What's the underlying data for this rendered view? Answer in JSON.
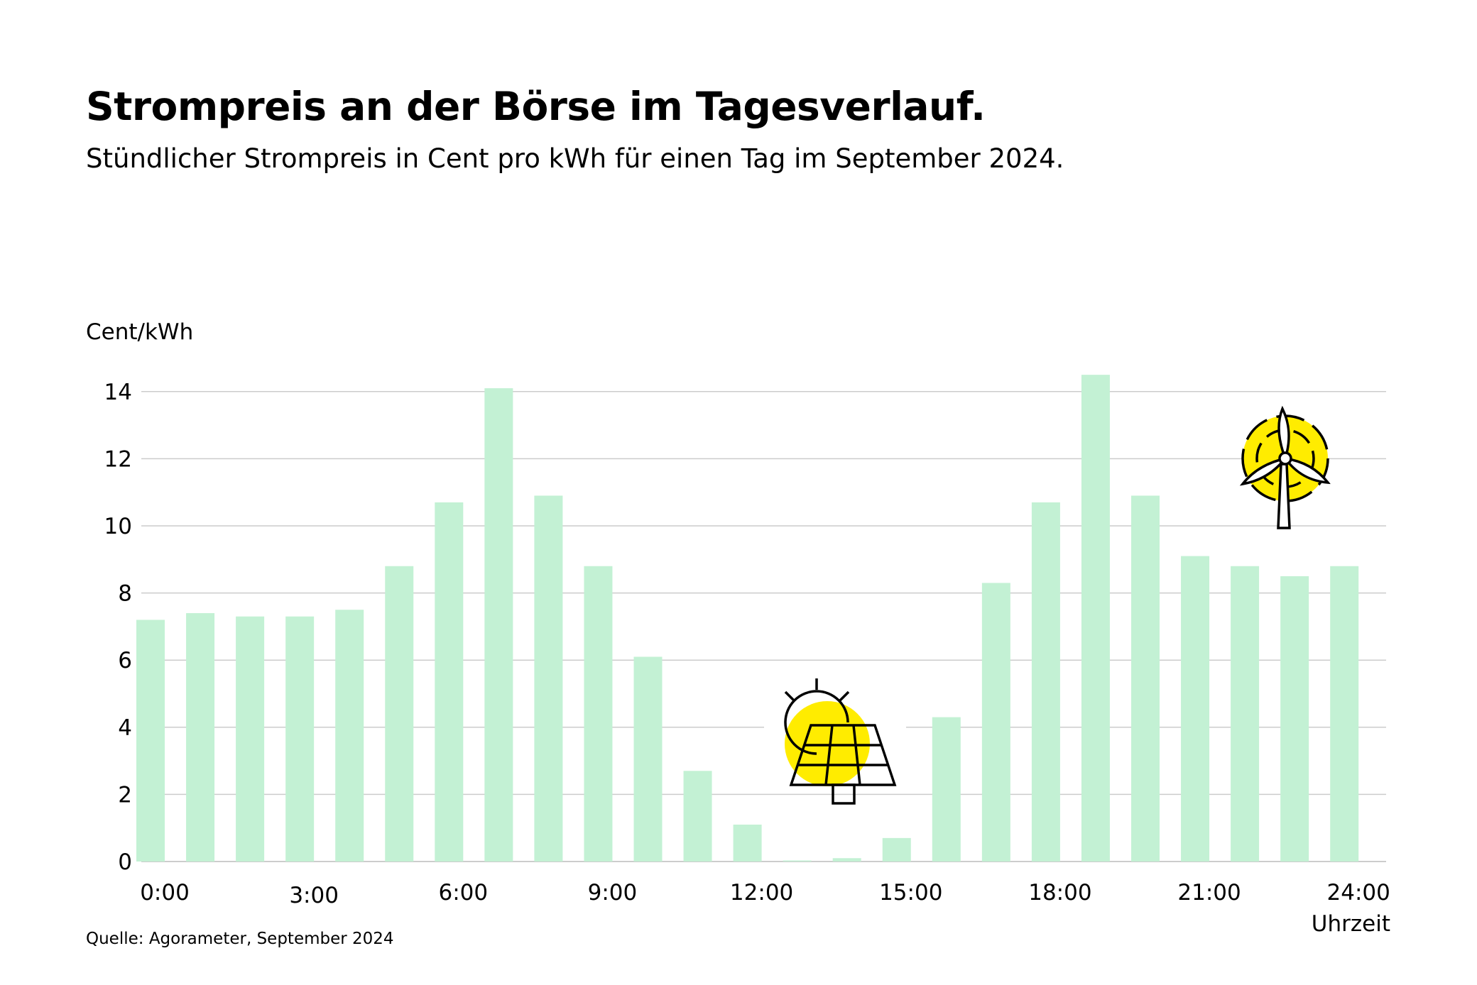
{
  "header": {
    "title": "Strompreis an der Börse im Tagesverlauf.",
    "subtitle": "Stündlicher Strompreis in Cent pro kWh für einen Tag im September 2024."
  },
  "footer": {
    "source": "Quelle: Agorameter, September 2024"
  },
  "icons": {
    "solar": "solar-panel-icon",
    "wind": "wind-turbine-icon"
  },
  "colors": {
    "bar": "#c3f1d4",
    "grid": "#cccccc",
    "icon_accent": "#ffec00"
  },
  "chart_data": {
    "type": "bar",
    "ylabel": "Cent/kWh",
    "xlabel": "Uhrzeit",
    "ylim": [
      0,
      14.5
    ],
    "yticks": [
      0,
      2,
      4,
      6,
      8,
      10,
      12,
      14
    ],
    "xtick_labels": [
      "0:00",
      "3:00",
      "6:00",
      "9:00",
      "12:00",
      "15:00",
      "18:00",
      "21:00",
      "24:00"
    ],
    "grid": true,
    "values": [
      7.2,
      7.4,
      7.3,
      7.3,
      7.5,
      8.8,
      10.7,
      14.1,
      10.9,
      8.8,
      6.1,
      2.7,
      1.1,
      0.0,
      0.1,
      0.7,
      4.3,
      8.3,
      10.7,
      14.5,
      10.9,
      9.1,
      8.8,
      8.5,
      8.8
    ]
  }
}
